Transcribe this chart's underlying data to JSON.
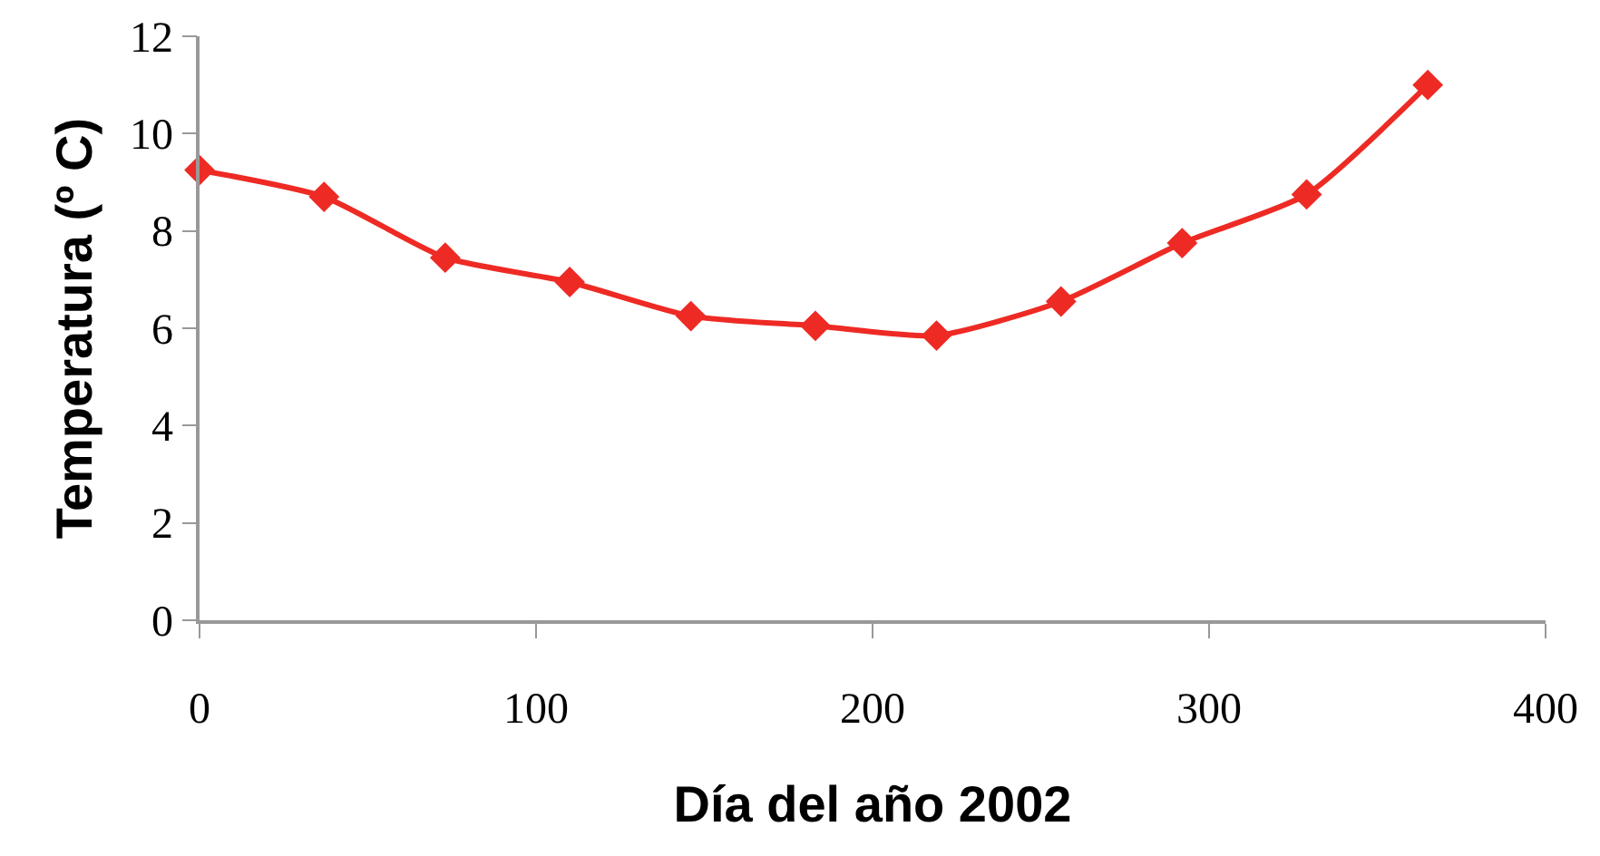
{
  "chart_data": {
    "type": "line",
    "xlabel": "Día del año 2002",
    "ylabel": "Temperatura (º C)",
    "x": [
      0,
      37,
      73,
      110,
      146,
      183,
      219,
      256,
      292,
      329,
      365
    ],
    "series": [
      {
        "color": "#ee2a24",
        "values": [
          9.25,
          8.7,
          7.45,
          6.95,
          6.25,
          6.05,
          5.85,
          6.55,
          7.75,
          8.75,
          11.0
        ]
      }
    ],
    "xlim": [
      0,
      400
    ],
    "xticks": [
      0,
      100,
      200,
      300,
      400
    ],
    "ylim": [
      0,
      12
    ],
    "yticks": [
      0,
      2,
      4,
      6,
      8,
      10,
      12
    ],
    "grid": false,
    "marker": "diamond",
    "line_style": "solid"
  }
}
